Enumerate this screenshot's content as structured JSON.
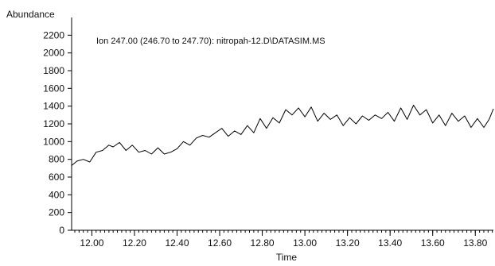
{
  "chart_data": {
    "type": "line",
    "title": "",
    "annotation": "Ion 247.00 (246.70 to 247.70): nitropah-12.D\\DATASIM.MS",
    "xlabel": "Time",
    "ylabel": "Abundance",
    "xlim": [
      11.905,
      13.885
    ],
    "ylim": [
      0,
      2400
    ],
    "x_ticks": [
      12.0,
      12.2,
      12.4,
      12.6,
      12.8,
      13.0,
      13.2,
      13.4,
      13.6,
      13.8
    ],
    "x_tick_labels": [
      "12.00",
      "12.20",
      "12.40",
      "12.60",
      "12.80",
      "13.00",
      "13.20",
      "13.40",
      "13.60",
      "13.80"
    ],
    "y_ticks": [
      0,
      200,
      400,
      600,
      800,
      1000,
      1200,
      1400,
      1600,
      1800,
      2000,
      2200
    ],
    "y_tick_labels": [
      "0",
      "200",
      "400",
      "600",
      "800",
      "1000",
      "1200",
      "1400",
      "1600",
      "1800",
      "2000",
      "2200"
    ],
    "grid": false,
    "line_color": "#000000",
    "series": [
      {
        "x": [
          11.905,
          11.93,
          11.96,
          11.99,
          12.02,
          12.05,
          12.08,
          12.1,
          12.13,
          12.16,
          12.19,
          12.22,
          12.25,
          12.28,
          12.31,
          12.34,
          12.37,
          12.4,
          12.43,
          12.46,
          12.49,
          12.52,
          12.55,
          12.58,
          12.61,
          12.64,
          12.67,
          12.7,
          12.73,
          12.76,
          12.79,
          12.82,
          12.85,
          12.88,
          12.91,
          12.94,
          12.97,
          13.0,
          13.03,
          13.06,
          13.09,
          13.12,
          13.15,
          13.18,
          13.21,
          13.24,
          13.27,
          13.3,
          13.33,
          13.36,
          13.39,
          13.42,
          13.45,
          13.48,
          13.51,
          13.54,
          13.57,
          13.6,
          13.63,
          13.66,
          13.69,
          13.72,
          13.75,
          13.78,
          13.81,
          13.84,
          13.865,
          13.885
        ],
        "values": [
          730,
          780,
          800,
          770,
          880,
          900,
          960,
          940,
          990,
          900,
          960,
          880,
          900,
          860,
          930,
          860,
          880,
          920,
          1000,
          960,
          1040,
          1070,
          1050,
          1100,
          1150,
          1060,
          1120,
          1080,
          1180,
          1100,
          1260,
          1150,
          1270,
          1210,
          1360,
          1300,
          1380,
          1280,
          1390,
          1230,
          1320,
          1250,
          1300,
          1180,
          1270,
          1200,
          1290,
          1240,
          1300,
          1260,
          1330,
          1230,
          1380,
          1250,
          1410,
          1300,
          1360,
          1210,
          1300,
          1180,
          1320,
          1230,
          1290,
          1160,
          1260,
          1160,
          1250,
          1370
        ]
      }
    ]
  }
}
